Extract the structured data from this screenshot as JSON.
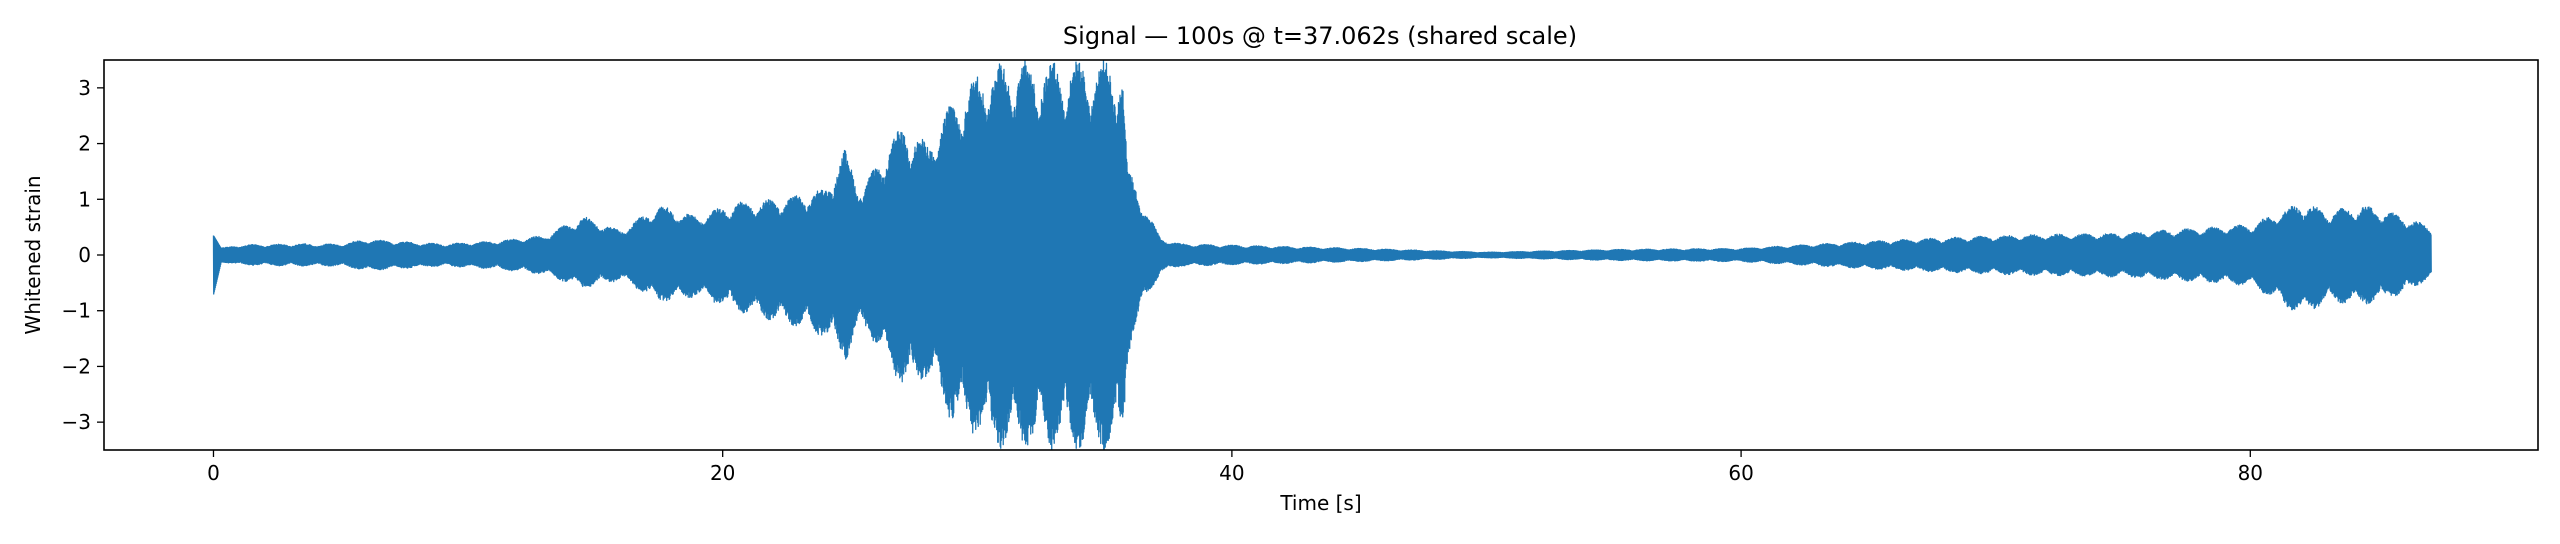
{
  "chart_data": {
    "type": "line",
    "title": "Signal — 100s @ t=37.062s (shared scale)",
    "xlabel": "Time [s]",
    "ylabel": "Whitened strain",
    "xlim": [
      -4.3,
      91.3
    ],
    "ylim": [
      -3.5,
      3.5
    ],
    "x_ticks": [
      0,
      20,
      40,
      60,
      80
    ],
    "y_ticks": [
      -3,
      -2,
      -1,
      0,
      1,
      2,
      3
    ],
    "x_tick_labels": [
      "0",
      "20",
      "40",
      "60",
      "80"
    ],
    "y_tick_labels": [
      "−3",
      "−2",
      "−1",
      "0",
      "1",
      "2",
      "3"
    ],
    "grid": false,
    "legend": "none",
    "series": [
      {
        "color": "#1f77b4",
        "x_range": [
          0,
          87.1
        ],
        "envelope": {
          "t": [
            0,
            0.3,
            1,
            3,
            5,
            6,
            9,
            11,
            13,
            14.5,
            16,
            17.5,
            19,
            20.5,
            22,
            23,
            24,
            24.8,
            25.5,
            26.5,
            27.2,
            28,
            29,
            30.5,
            33,
            35,
            35.7,
            35.9,
            36.5,
            37.2,
            38,
            45,
            50,
            55,
            60,
            65,
            70,
            75,
            80,
            82,
            83,
            84.5,
            86,
            87.1
          ],
          "upper": [
            0.35,
            0.12,
            0.18,
            0.2,
            0.2,
            0.28,
            0.2,
            0.25,
            0.35,
            0.7,
            0.45,
            0.9,
            0.7,
            0.95,
            1.0,
            1.1,
            1.2,
            1.9,
            1.2,
            2.0,
            2.4,
            2.0,
            2.8,
            3.5,
            3.5,
            3.5,
            3.5,
            1.6,
            0.95,
            0.3,
            0.2,
            0.12,
            0.05,
            0.1,
            0.12,
            0.25,
            0.35,
            0.4,
            0.55,
            0.95,
            0.8,
            0.9,
            0.7,
            0.5
          ],
          "lower": [
            -0.7,
            -0.12,
            -0.18,
            -0.2,
            -0.2,
            -0.28,
            -0.2,
            -0.25,
            -0.35,
            -0.6,
            -0.45,
            -0.85,
            -0.75,
            -1.0,
            -1.2,
            -1.3,
            -1.5,
            -1.9,
            -1.3,
            -2.0,
            -2.5,
            -2.2,
            -3.0,
            -3.5,
            -3.5,
            -3.5,
            -3.5,
            -1.8,
            -0.9,
            -0.3,
            -0.2,
            -0.12,
            -0.05,
            -0.1,
            -0.12,
            -0.25,
            -0.35,
            -0.4,
            -0.55,
            -1.1,
            -0.85,
            -0.9,
            -0.7,
            -0.4
          ]
        }
      }
    ]
  }
}
